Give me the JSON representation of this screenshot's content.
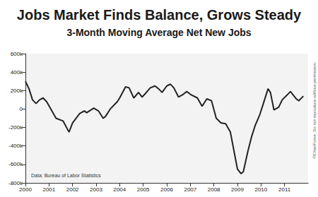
{
  "chart_data": {
    "type": "line",
    "title": "Jobs Market Finds Balance, Grows Steady",
    "subtitle": "3-Month Moving Average Net New Jobs",
    "annotations": [
      "Data: Bureau of Labor Statistics",
      "©ChartForce. Do not reproduce without permission."
    ],
    "x": [
      2000.0,
      2000.15,
      2000.3,
      2000.45,
      2000.6,
      2000.75,
      2000.9,
      2001.1,
      2001.3,
      2001.6,
      2001.85,
      2002.0,
      2002.3,
      2002.5,
      2002.6,
      2002.9,
      2003.1,
      2003.3,
      2003.4,
      2003.6,
      2003.9,
      2004.0,
      2004.25,
      2004.4,
      2004.6,
      2004.8,
      2004.95,
      2005.1,
      2005.3,
      2005.5,
      2005.65,
      2005.8,
      2006.0,
      2006.15,
      2006.3,
      2006.5,
      2006.7,
      2006.85,
      2007.0,
      2007.3,
      2007.5,
      2007.7,
      2007.9,
      2008.1,
      2008.3,
      2008.5,
      2008.7,
      2008.85,
      2009.0,
      2009.15,
      2009.25,
      2009.45,
      2009.6,
      2009.75,
      2009.95,
      2010.1,
      2010.3,
      2010.4,
      2010.55,
      2010.75,
      2010.9,
      2011.1,
      2011.25,
      2011.5,
      2011.6,
      2011.8
    ],
    "values": [
      300000,
      220000,
      100000,
      60000,
      100000,
      120000,
      80000,
      -10000,
      -100000,
      -130000,
      -250000,
      -150000,
      -50000,
      -20000,
      -40000,
      10000,
      -20000,
      -100000,
      -80000,
      0,
      80000,
      120000,
      240000,
      230000,
      120000,
      180000,
      130000,
      170000,
      230000,
      250000,
      220000,
      180000,
      250000,
      270000,
      230000,
      130000,
      160000,
      190000,
      160000,
      120000,
      30000,
      110000,
      90000,
      -100000,
      -150000,
      -160000,
      -250000,
      -450000,
      -650000,
      -700000,
      -680000,
      -450000,
      -300000,
      -180000,
      -60000,
      60000,
      220000,
      180000,
      -10000,
      20000,
      100000,
      150000,
      190000,
      110000,
      90000,
      140000
    ],
    "color": "#222222",
    "xlim": [
      2000,
      2012
    ],
    "xticks": [
      2000,
      2001,
      2002,
      2003,
      2004,
      2005,
      2006,
      2007,
      2008,
      2009,
      2010,
      2011
    ],
    "ylim": [
      -800000,
      600000
    ],
    "yticks": [
      {
        "value": -800000,
        "label": "-800k"
      },
      {
        "value": -600000,
        "label": "-600k"
      },
      {
        "value": -400000,
        "label": "-400k"
      },
      {
        "value": -200000,
        "label": "-200k"
      },
      {
        "value": 0,
        "label": "0"
      },
      {
        "value": 200000,
        "label": "200k"
      },
      {
        "value": 400000,
        "label": "400k"
      },
      {
        "value": 600000,
        "label": "600k"
      }
    ],
    "grid": false
  }
}
